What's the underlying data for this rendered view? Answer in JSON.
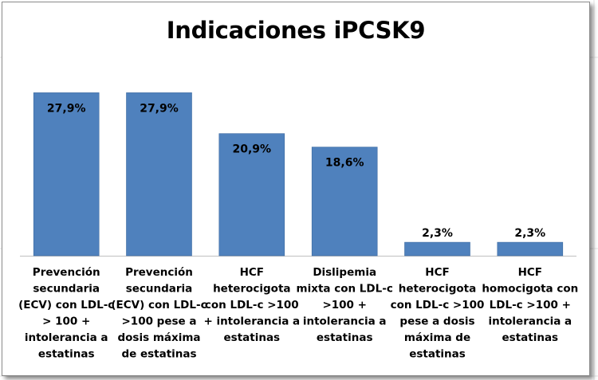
{
  "chart_data": {
    "type": "bar",
    "title": "Indicaciones iPCSK9",
    "categories": [
      [
        "Prevención",
        "secundaria",
        "(ECV) con LDL-c",
        "> 100 +",
        "intolerancia a",
        "estatinas"
      ],
      [
        "Prevención",
        "secundaria",
        "(ECV) con LDL-c",
        ">100 pese a",
        "dosis máxima",
        "de estatinas"
      ],
      [
        "HCF",
        "heterocigota",
        "con LDL-c >100",
        "+ intolerancia a",
        "estatinas"
      ],
      [
        "Dislipemia",
        "mixta con LDL-c",
        ">100 +",
        "intolerancia a",
        "estatinas"
      ],
      [
        "HCF",
        "heterocigota",
        "con LDL-c >100",
        "pese a dosis",
        "máxima de",
        "estatinas"
      ],
      [
        "HCF",
        "homocigota con",
        "LDL-c >100 +",
        "intolerancia a",
        "estatinas"
      ]
    ],
    "values": [
      27.9,
      27.9,
      20.9,
      18.6,
      2.3,
      2.3
    ],
    "data_labels": [
      "27,9%",
      "27,9%",
      "20,9%",
      "18,6%",
      "2,3%",
      "2,3%"
    ],
    "ylim": [
      0,
      30
    ],
    "grid": false,
    "legend": "none",
    "colors": {
      "bar": "#4f81bd",
      "bar_edge": "#3c6aa0",
      "axis": "#bfbfbf",
      "text": "#000000"
    }
  }
}
